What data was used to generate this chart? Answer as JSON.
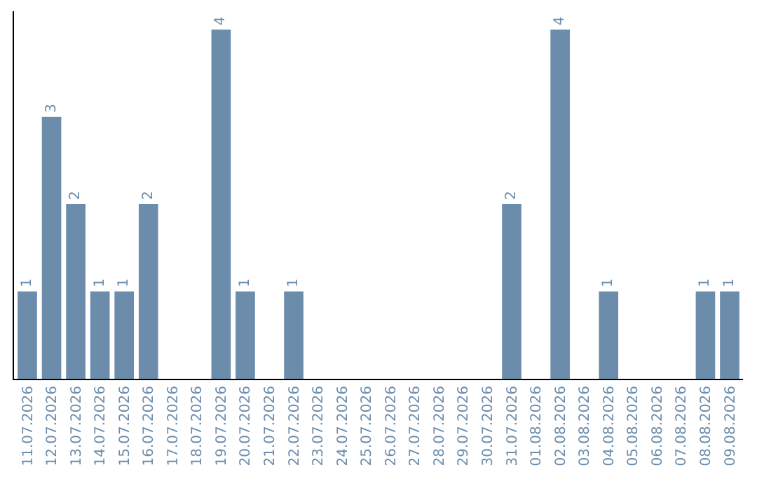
{
  "chart_data": {
    "type": "bar",
    "categories": [
      "11.07.2026",
      "12.07.2026",
      "13.07.2026",
      "14.07.2026",
      "15.07.2026",
      "16.07.2026",
      "17.07.2026",
      "18.07.2026",
      "19.07.2026",
      "20.07.2026",
      "21.07.2026",
      "22.07.2026",
      "23.07.2026",
      "24.07.2026",
      "25.07.2026",
      "26.07.2026",
      "27.07.2026",
      "28.07.2026",
      "29.07.2026",
      "30.07.2026",
      "31.07.2026",
      "01.08.2026",
      "02.08.2026",
      "03.08.2026",
      "04.08.2026",
      "05.08.2026",
      "06.08.2026",
      "07.08.2026",
      "08.08.2026",
      "09.08.2026"
    ],
    "values": [
      1,
      3,
      2,
      1,
      1,
      2,
      0,
      0,
      4,
      1,
      0,
      1,
      0,
      0,
      0,
      0,
      0,
      0,
      0,
      0,
      2,
      0,
      4,
      0,
      1,
      0,
      0,
      0,
      1,
      1
    ],
    "value_labels": [
      "1",
      "3",
      "2",
      "1",
      "1",
      "2",
      null,
      null,
      "4",
      "1",
      null,
      "1",
      null,
      null,
      null,
      null,
      null,
      null,
      null,
      null,
      "2",
      null,
      "4",
      null,
      "1",
      null,
      null,
      null,
      "1",
      "1"
    ],
    "color": "#6b8cab",
    "tick_labels": "x"
  }
}
